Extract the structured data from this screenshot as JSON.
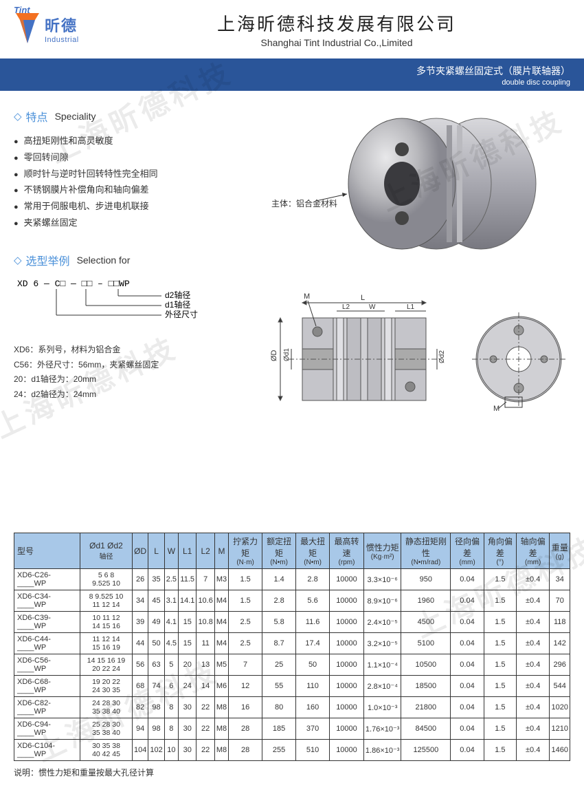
{
  "logo": {
    "zh": "昕德",
    "en": "Industrial",
    "tint": "Tint"
  },
  "company": {
    "zh": "上海昕德科技发展有限公司",
    "en": "Shanghai Tint Industrial Co.,Limited"
  },
  "bluebar": {
    "zh": "多节夹紧螺丝固定式（膜片联轴器）",
    "en": "double disc coupling"
  },
  "speciality": {
    "title_zh": "特点",
    "title_en": "Speciality",
    "items": [
      "高扭矩刚性和高灵敏度",
      "零回转间隙",
      "顺时针与逆时针回转特性完全相同",
      "不锈钢膜片补偿角向和轴向偏差",
      "常用于伺服电机、步进电机联接",
      "夹紧螺丝固定"
    ]
  },
  "product_image": {
    "label": "主体：铝合金材料"
  },
  "selection": {
    "title_zh": "选型举例",
    "title_en": "Selection for",
    "pattern_prefix": "XD 6 — C",
    "pattern_boxes": [
      "□",
      "□□",
      "□□"
    ],
    "pattern_suffix": "WP",
    "lbl_d2": "d2轴径",
    "lbl_d1": "d1轴径",
    "lbl_outer": "外径尺寸",
    "notes": [
      "XD6：系列号，材料为铝合金",
      "C56：外径尺寸：56mm，夹紧螺丝固定",
      "20：d1轴径为：20mm",
      "24：d2轴径为：24mm"
    ]
  },
  "drawing": {
    "labels": {
      "M": "M",
      "L": "L",
      "L1": "L1",
      "L2": "L2",
      "W": "W",
      "OD": "ØD",
      "Od1": "Ød1",
      "Od2": "Ød2"
    }
  },
  "table": {
    "headers": [
      {
        "zh": "型号",
        "unit": ""
      },
      {
        "zh": "Ød1 Ød2",
        "unit": "轴径"
      },
      {
        "zh": "ØD",
        "unit": ""
      },
      {
        "zh": "L",
        "unit": ""
      },
      {
        "zh": "W",
        "unit": ""
      },
      {
        "zh": "L1",
        "unit": ""
      },
      {
        "zh": "L2",
        "unit": ""
      },
      {
        "zh": "M",
        "unit": ""
      },
      {
        "zh": "拧紧力矩",
        "unit": "(N·m)"
      },
      {
        "zh": "额定扭矩",
        "unit": "(N•m)"
      },
      {
        "zh": "最大扭矩",
        "unit": "(N•m)"
      },
      {
        "zh": "最高转速",
        "unit": "(rpm)"
      },
      {
        "zh": "惯性力矩",
        "unit": "(Kg·m²)"
      },
      {
        "zh": "静态扭矩刚性",
        "unit": "(N•m/rad)"
      },
      {
        "zh": "径向偏差",
        "unit": "(mm)"
      },
      {
        "zh": "角向偏差",
        "unit": "(°)"
      },
      {
        "zh": "轴向偏差",
        "unit": "(mm)"
      },
      {
        "zh": "重量",
        "unit": "(g)"
      }
    ],
    "rows": [
      [
        "XD6-C26-____WP",
        "5 6 8\n9.525 10",
        "26",
        "35",
        "2.5",
        "11.5",
        "7",
        "M3",
        "1.5",
        "1.4",
        "2.8",
        "10000",
        "3.3×10⁻⁶",
        "950",
        "0.04",
        "1.5",
        "±0.4",
        "34"
      ],
      [
        "XD6-C34-____WP",
        "8 9.525 10\n11 12 14",
        "34",
        "45",
        "3.1",
        "14.1",
        "10.6",
        "M4",
        "1.5",
        "2.8",
        "5.6",
        "10000",
        "8.9×10⁻⁶",
        "1960",
        "0.04",
        "1.5",
        "±0.4",
        "70"
      ],
      [
        "XD6-C39-____WP",
        "10 11 12\n14 15 16",
        "39",
        "49",
        "4.1",
        "15",
        "10.8",
        "M4",
        "2.5",
        "5.8",
        "11.6",
        "10000",
        "2.4×10⁻⁵",
        "4500",
        "0.04",
        "1.5",
        "±0.4",
        "118"
      ],
      [
        "XD6-C44-____WP",
        "11 12 14\n15 16 19",
        "44",
        "50",
        "4.5",
        "15",
        "11",
        "M4",
        "2.5",
        "8.7",
        "17.4",
        "10000",
        "3.2×10⁻⁵",
        "5100",
        "0.04",
        "1.5",
        "±0.4",
        "142"
      ],
      [
        "XD6-C56-____WP",
        "14 15 16 19\n20 22 24",
        "56",
        "63",
        "5",
        "20",
        "13",
        "M5",
        "7",
        "25",
        "50",
        "10000",
        "1.1×10⁻⁴",
        "10500",
        "0.04",
        "1.5",
        "±0.4",
        "296"
      ],
      [
        "XD6-C68-____WP",
        "19 20 22\n24 30 35",
        "68",
        "74",
        "6",
        "24",
        "14",
        "M6",
        "12",
        "55",
        "110",
        "10000",
        "2.8×10⁻⁴",
        "18500",
        "0.04",
        "1.5",
        "±0.4",
        "544"
      ],
      [
        "XD6-C82-____WP",
        "24 28 30\n35 38 40",
        "82",
        "98",
        "8",
        "30",
        "22",
        "M8",
        "16",
        "80",
        "160",
        "10000",
        "1.0×10⁻³",
        "21800",
        "0.04",
        "1.5",
        "±0.4",
        "1020"
      ],
      [
        "XD6-C94-____WP",
        "25 28 30\n35 38 40",
        "94",
        "98",
        "8",
        "30",
        "22",
        "M8",
        "28",
        "185",
        "370",
        "10000",
        "1.76×10⁻³",
        "84500",
        "0.04",
        "1.5",
        "±0.4",
        "1210"
      ],
      [
        "XD6-C104-____WP",
        "30 35 38\n40 42 45",
        "104",
        "102",
        "10",
        "30",
        "22",
        "M8",
        "28",
        "255",
        "510",
        "10000",
        "1.86×10⁻³",
        "125500",
        "0.04",
        "1.5",
        "±0.4",
        "1460"
      ]
    ]
  },
  "footnote": "说明：惯性力矩和重量按最大孔径计算",
  "watermark": "上海昕德科技",
  "colors": {
    "brand_blue": "#2a5599",
    "light_blue": "#4a90d9",
    "th_bg": "#a8c8e8",
    "border": "#333333",
    "logo_orange": "#f37021",
    "logo_blue": "#4472c4"
  }
}
